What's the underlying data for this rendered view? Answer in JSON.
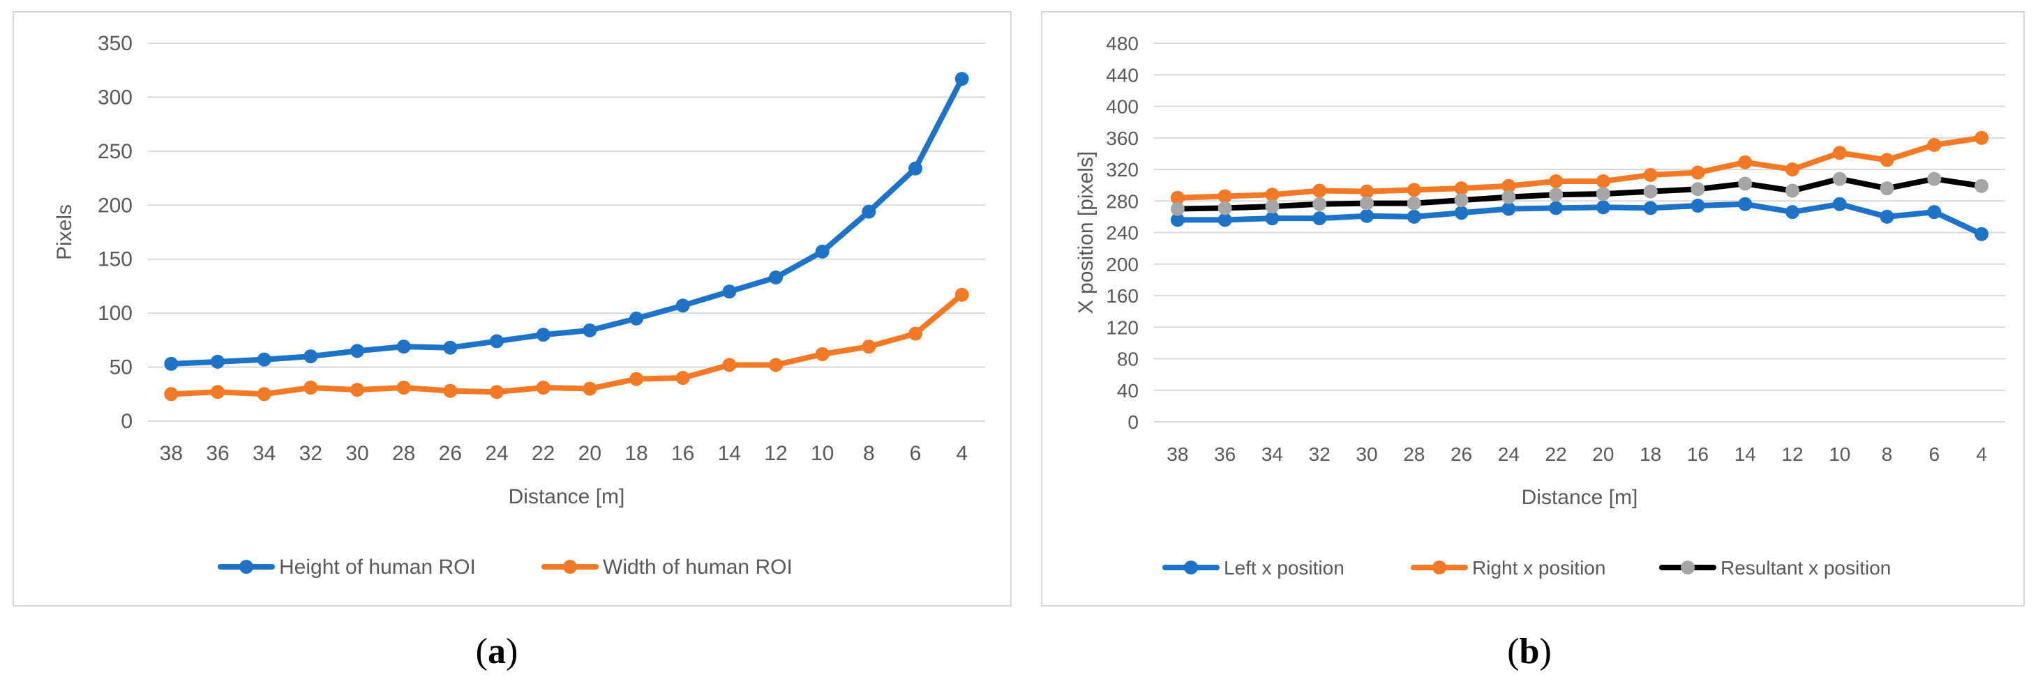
{
  "chart_data": [
    {
      "type": "line",
      "title": "",
      "xlabel": "Distance [m]",
      "ylabel": "Pixels",
      "categories": [
        "38",
        "36",
        "34",
        "32",
        "30",
        "28",
        "26",
        "24",
        "22",
        "20",
        "18",
        "16",
        "14",
        "12",
        "10",
        "8",
        "6",
        "4"
      ],
      "yticks": [
        "0",
        "50",
        "100",
        "150",
        "200",
        "250",
        "300",
        "350"
      ],
      "ylim": [
        0,
        350
      ],
      "ystep": 50,
      "grid": true,
      "legend_position": "bottom",
      "series": [
        {
          "name": "Height of human ROI",
          "color": "#1f73c6",
          "values": [
            53,
            55,
            57,
            60,
            65,
            69,
            68,
            74,
            80,
            84,
            95,
            107,
            120,
            133,
            157,
            194,
            234,
            317
          ]
        },
        {
          "name": "Width of human ROI",
          "color": "#f27a27",
          "values": [
            25,
            27,
            25,
            31,
            29,
            31,
            28,
            27,
            31,
            30,
            39,
            40,
            52,
            52,
            62,
            69,
            81,
            117
          ]
        }
      ]
    },
    {
      "type": "line",
      "title": "",
      "xlabel": "Distance [m]",
      "ylabel": "X position [pixels]",
      "categories": [
        "38",
        "36",
        "34",
        "32",
        "30",
        "28",
        "26",
        "24",
        "22",
        "20",
        "18",
        "16",
        "14",
        "12",
        "10",
        "8",
        "6",
        "4"
      ],
      "yticks": [
        "0",
        "40",
        "80",
        "120",
        "160",
        "200",
        "240",
        "280",
        "320",
        "360",
        "400",
        "440",
        "480"
      ],
      "ylim": [
        0,
        480
      ],
      "ystep": 40,
      "grid": true,
      "legend_position": "bottom",
      "series": [
        {
          "name": "Left x position",
          "color": "#1f73c6",
          "marker": "#1f73c6",
          "values": [
            256,
            256,
            258,
            258,
            261,
            260,
            265,
            270,
            271,
            272,
            271,
            274,
            276,
            266,
            276,
            260,
            266,
            238
          ]
        },
        {
          "name": "Right x position",
          "color": "#f27a27",
          "marker": "#f27a27",
          "values": [
            284,
            286,
            288,
            293,
            292,
            294,
            296,
            299,
            305,
            305,
            313,
            316,
            329,
            320,
            341,
            332,
            351,
            360
          ]
        },
        {
          "name": "Resultant x position",
          "color": "#000000",
          "marker": "#a6a6a6",
          "values": [
            270,
            271,
            273,
            276,
            277,
            277,
            281,
            285,
            288,
            289,
            292,
            295,
            302,
            293,
            308,
            296,
            308,
            299
          ]
        }
      ]
    }
  ],
  "captions": {
    "a": "a",
    "b": "b"
  }
}
